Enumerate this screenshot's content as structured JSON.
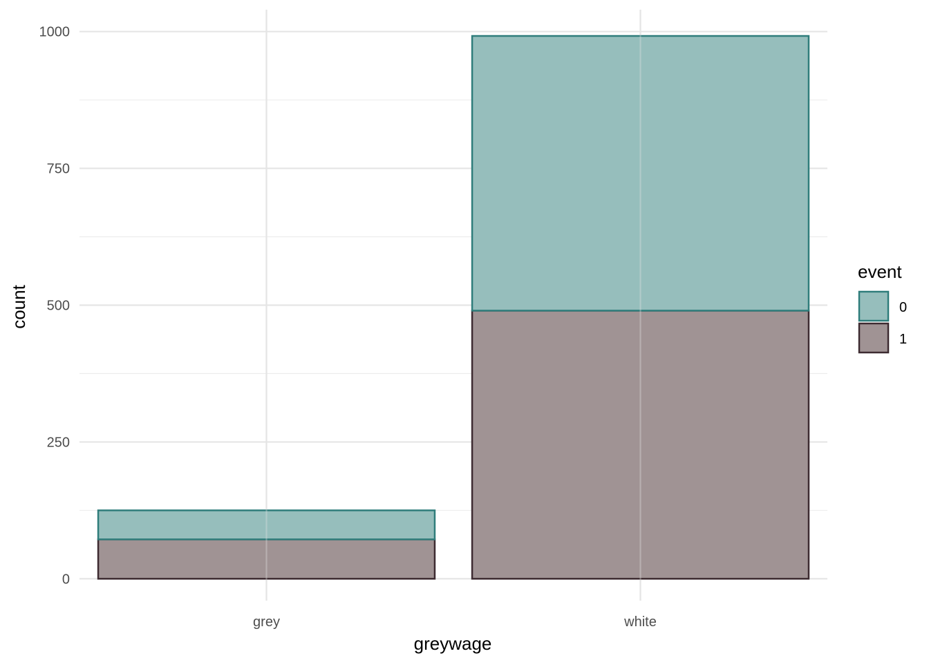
{
  "chart_data": {
    "type": "bar",
    "stacked": true,
    "title": "",
    "xlabel": "greywage",
    "ylabel": "count",
    "categories": [
      "grey",
      "white"
    ],
    "series": [
      {
        "name": "1",
        "values": [
          72,
          490
        ],
        "fill": "#a09394",
        "stroke": "#3d2b31"
      },
      {
        "name": "0",
        "values": [
          53,
          502
        ],
        "fill": "#96bebc",
        "stroke": "#2f7d7b"
      }
    ],
    "ylim": [
      -40,
      1040
    ],
    "yticks": [
      0,
      250,
      500,
      750,
      1000
    ],
    "yticks_minor": [
      125,
      375,
      625,
      875
    ],
    "grid": true,
    "legend": {
      "title": "event",
      "position": "right",
      "entries": [
        {
          "label": "0",
          "fill": "#96bebc",
          "stroke": "#2f7d7b"
        },
        {
          "label": "1",
          "fill": "#a09394",
          "stroke": "#3d2b31"
        }
      ]
    }
  }
}
